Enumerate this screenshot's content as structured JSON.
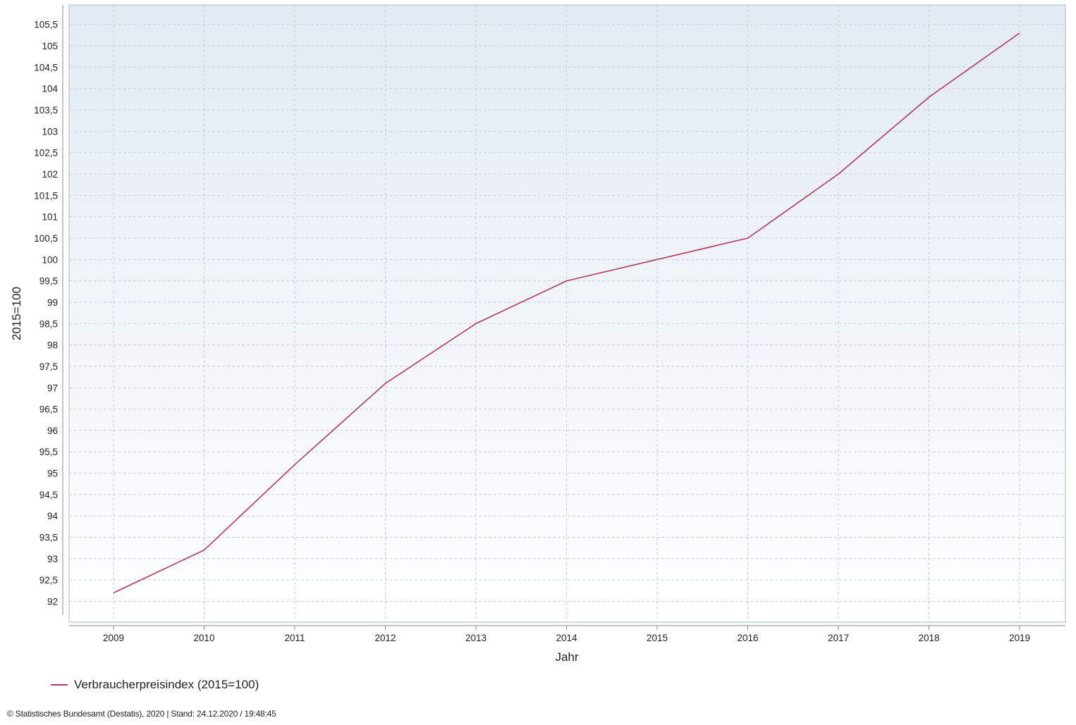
{
  "chart_data": {
    "type": "line",
    "x": [
      "2009",
      "2010",
      "2011",
      "2012",
      "2013",
      "2014",
      "2015",
      "2016",
      "2017",
      "2018",
      "2019"
    ],
    "series": [
      {
        "name": "Verbraucherpreisindex (2015=100)",
        "values": [
          92.2,
          93.2,
          95.2,
          97.1,
          98.5,
          99.5,
          100.0,
          100.5,
          102.0,
          103.8,
          105.3
        ]
      }
    ],
    "xlabel": "Jahr",
    "ylabel": "2015=100",
    "ylim": [
      91.5,
      106
    ],
    "yticks": [
      92,
      92.5,
      93,
      93.5,
      94,
      94.5,
      95,
      95.5,
      96,
      96.5,
      97,
      97.5,
      98,
      98.5,
      99,
      99.5,
      100,
      100.5,
      101,
      101.5,
      102,
      102.5,
      103,
      103.5,
      104,
      104.5,
      105,
      105.5
    ],
    "ytick_labels": [
      "92",
      "92,5",
      "93",
      "93,5",
      "94",
      "94,5",
      "95",
      "95,5",
      "96",
      "96,5",
      "97",
      "97,5",
      "98",
      "98,5",
      "99",
      "99,5",
      "100",
      "100,5",
      "101",
      "101,5",
      "102",
      "102,5",
      "103",
      "103,5",
      "104",
      "104,5",
      "105",
      "105,5"
    ],
    "grid": true,
    "legend_position": "bottom-left",
    "line_color": "#b5385f",
    "plot_background_top": "#e2ebf3",
    "plot_background_bottom": "#ffffff"
  },
  "legend": {
    "label": "Verbraucherpreisindex (2015=100)"
  },
  "footer": {
    "text": "© Statistisches Bundesamt (Destatis), 2020 | Stand: 24.12.2020 / 19:48:45"
  }
}
